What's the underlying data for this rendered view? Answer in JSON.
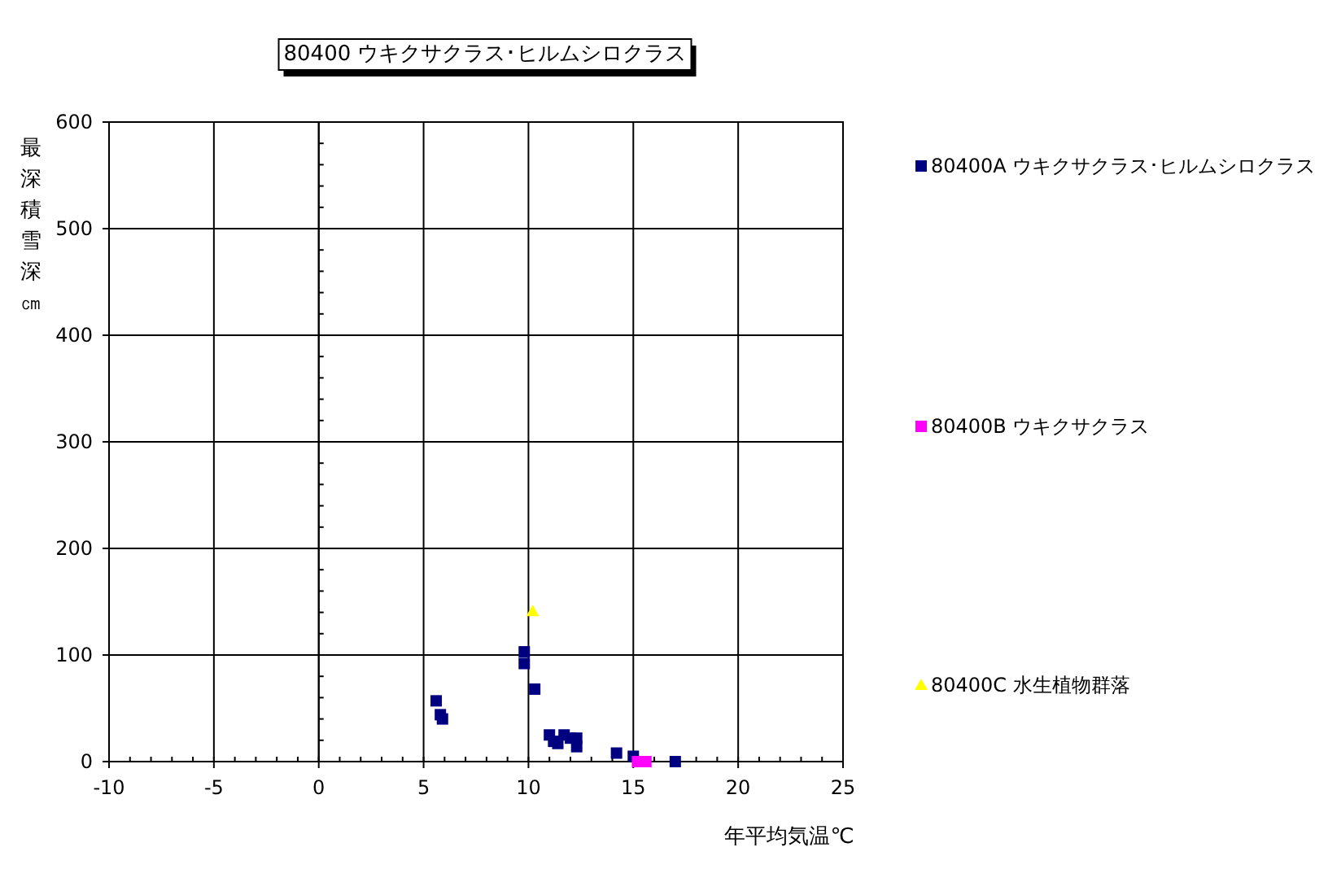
{
  "chart_data": {
    "type": "scatter",
    "title": "80400 ウキクサクラス･ヒルムシロクラス",
    "xlabel": "年平均気温℃",
    "ylabel": "最深積雪深㎝",
    "xlim": [
      -10,
      25
    ],
    "xticks": [
      -10,
      -5,
      0,
      5,
      10,
      15,
      20,
      25
    ],
    "ylim": [
      0,
      600
    ],
    "yticks": [
      0,
      100,
      200,
      300,
      400,
      500,
      600
    ],
    "grid": true,
    "legend": "right",
    "series": [
      {
        "name": "80400A ウキクサクラス･ヒルムシロクラス",
        "color": "#000080",
        "marker": "square",
        "x": [
          5.6,
          5.8,
          5.9,
          9.8,
          9.8,
          10.3,
          11.0,
          11.2,
          11.4,
          11.7,
          12.0,
          12.3,
          12.3,
          14.2,
          15.0,
          17.0
        ],
        "values": [
          57,
          44,
          40,
          103,
          92,
          68,
          25,
          19,
          17,
          25,
          22,
          22,
          14,
          8,
          5,
          0
        ]
      },
      {
        "name": "80400B ウキクサクラス",
        "color": "#ff00ff",
        "marker": "square",
        "x": [
          15.2,
          15.6
        ],
        "values": [
          0,
          0
        ]
      },
      {
        "name": "80400C 水生植物群落",
        "color": "#ffff00",
        "marker": "triangle",
        "x": [
          10.2
        ],
        "values": [
          141
        ]
      }
    ]
  }
}
